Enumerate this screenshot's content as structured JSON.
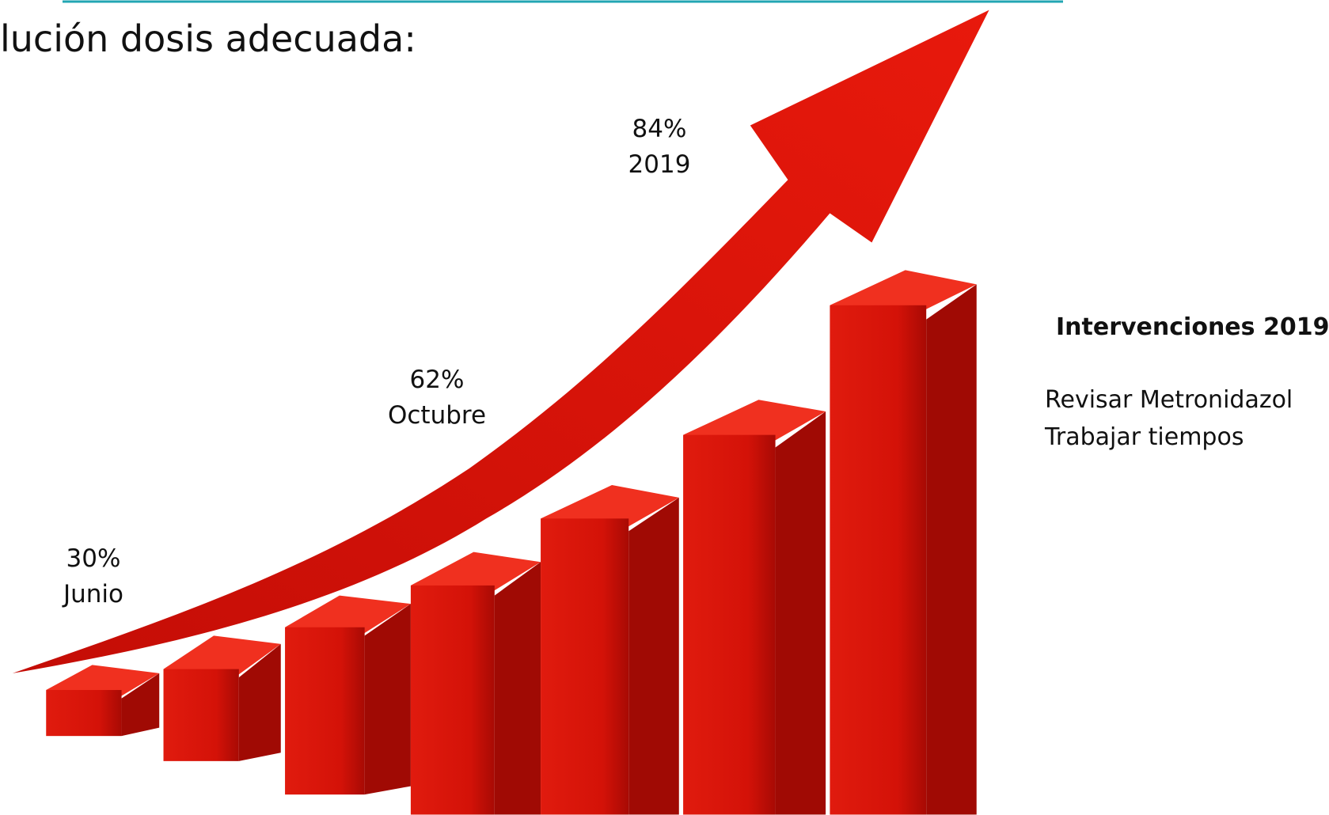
{
  "title": "lución dosis adecuada:",
  "annotations": [
    {
      "value": "30%",
      "label": "Junio"
    },
    {
      "value": "62%",
      "label": "Octubre"
    },
    {
      "value": "84%",
      "label": "2019"
    }
  ],
  "sidebar": {
    "heading": "Intervenciones 2019",
    "items": [
      "Revisar Metronidazol",
      "Trabajar tiempos"
    ]
  }
}
